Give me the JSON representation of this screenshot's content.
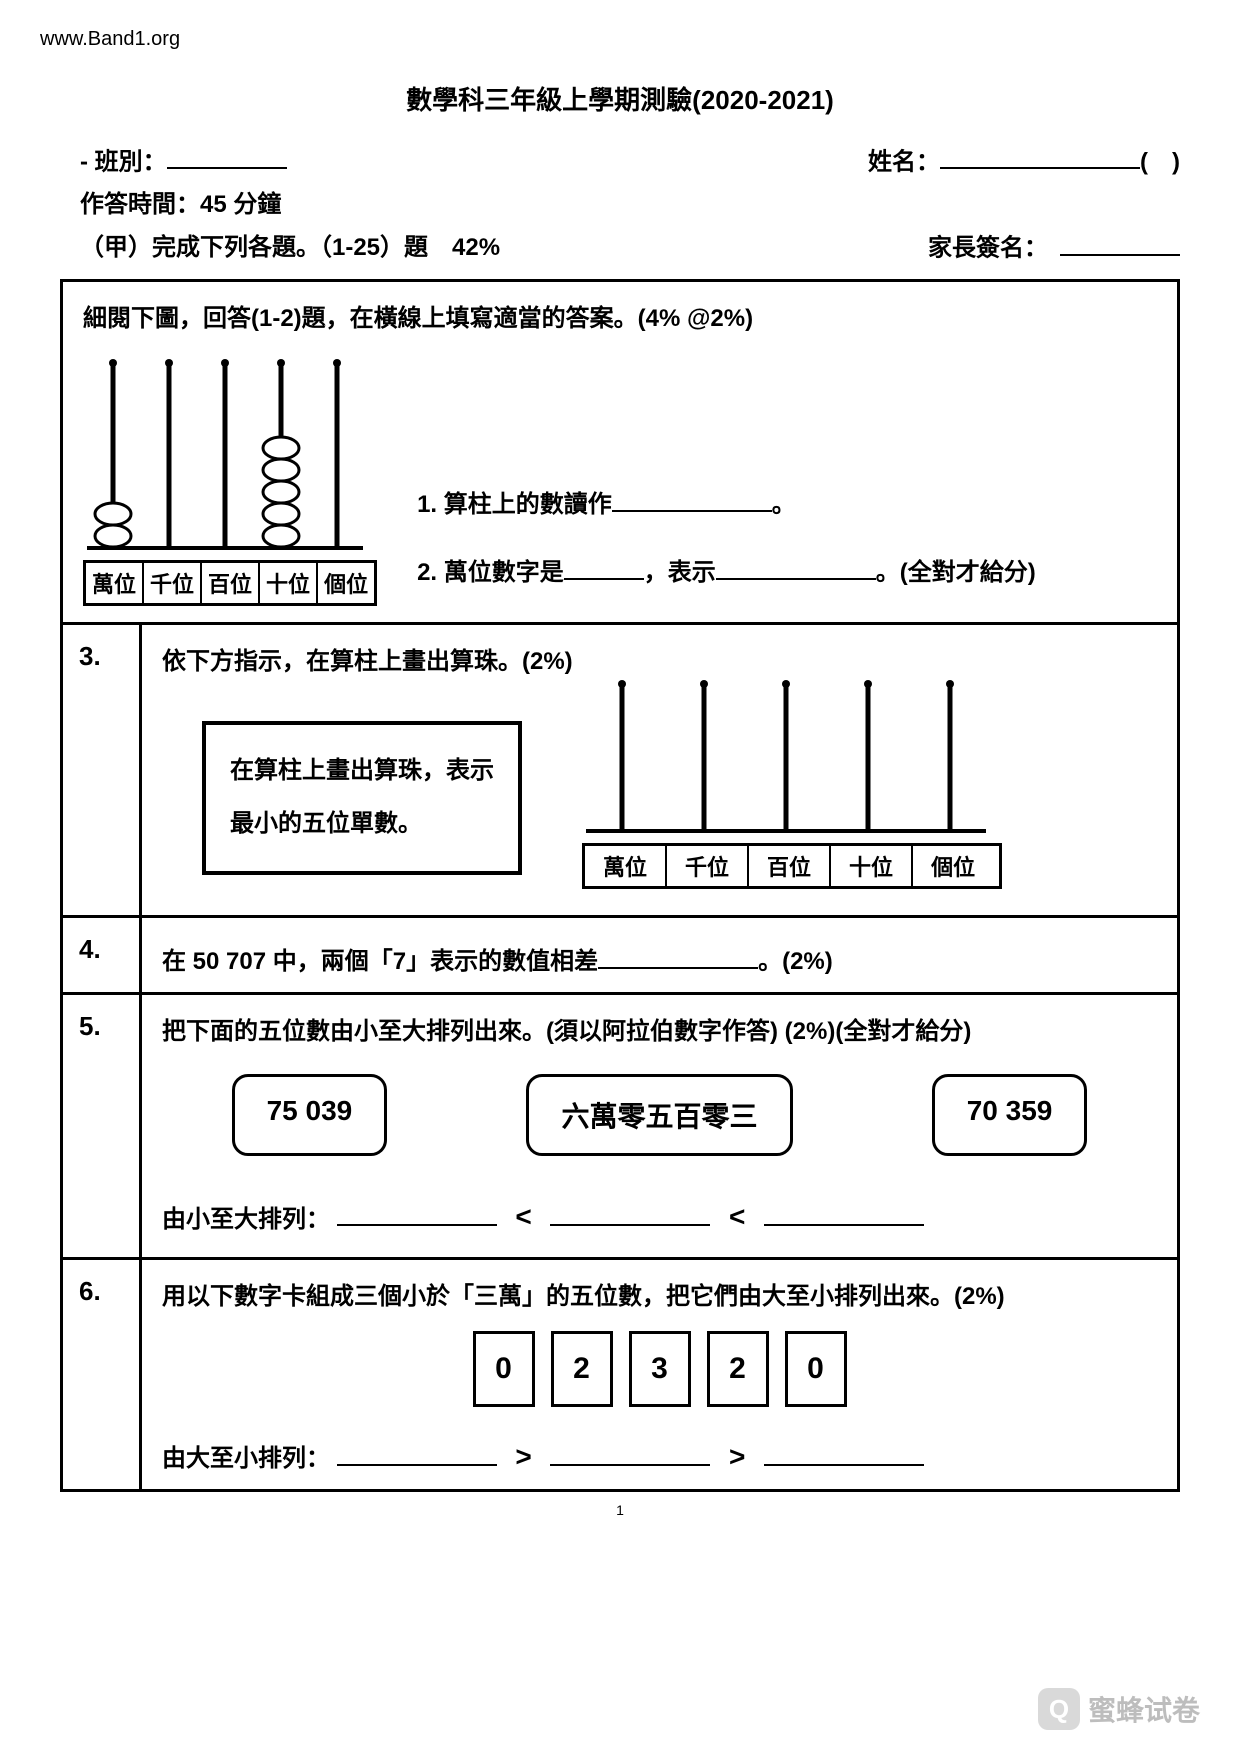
{
  "meta": {
    "url": "www.Band1.org",
    "page_number": "1",
    "watermark_text": "蜜蜂试卷"
  },
  "title": "數學科三年級上學期測驗(2020-2021)",
  "header": {
    "class_label": "班別：",
    "name_label": "姓名：",
    "paren_open": "(",
    "paren_close": ")",
    "time_label": "作答時間：45 分鐘",
    "parent_sign_label": "家長簽名：",
    "section_a": "（甲）完成下列各題。（1-25）題　42%"
  },
  "abacus": {
    "places": [
      "萬位",
      "千位",
      "百位",
      "十位",
      "個位"
    ],
    "beads": [
      2,
      0,
      0,
      5,
      0
    ]
  },
  "q_intro": {
    "instruction": "細閱下圖，回答(1-2)題，在橫線上填寫適當的答案。(4% @2%)",
    "q1": "1. 算柱上的數讀作",
    "q1_end": "。",
    "q2a": "2. 萬位數字是",
    "q2b": "，表示",
    "q2_end": "。(全對才給分)"
  },
  "q3": {
    "num": "3.",
    "text": "依下方指示，在算柱上畫出算珠。(2%)",
    "box_line1": "在算柱上畫出算珠，表示",
    "box_line2": "最小的五位單數。",
    "places": [
      "萬位",
      "千位",
      "百位",
      "十位",
      "個位"
    ]
  },
  "q4": {
    "num": "4.",
    "text_a": "在 50 707 中，兩個「7」表示的數值相差",
    "text_b": "。(2%)"
  },
  "q5": {
    "num": "5.",
    "text": "把下面的五位數由小至大排列出來。(須以阿拉伯數字作答) (2%)(全對才給分)",
    "boxes": [
      "75 039",
      "六萬零五百零三",
      "70 359"
    ],
    "order_label": "由小至大排列：",
    "sep": "<"
  },
  "q6": {
    "num": "6.",
    "text": "用以下數字卡組成三個小於「三萬」的五位數，把它們由大至小排列出來。(2%)",
    "digits": [
      "0",
      "2",
      "3",
      "2",
      "0"
    ],
    "order_label": "由大至小排列：",
    "sep": ">"
  },
  "style": {
    "text_color": "#000000",
    "bg_color": "#ffffff",
    "border_color": "#000000",
    "title_fontsize": 26,
    "body_fontsize": 24
  }
}
